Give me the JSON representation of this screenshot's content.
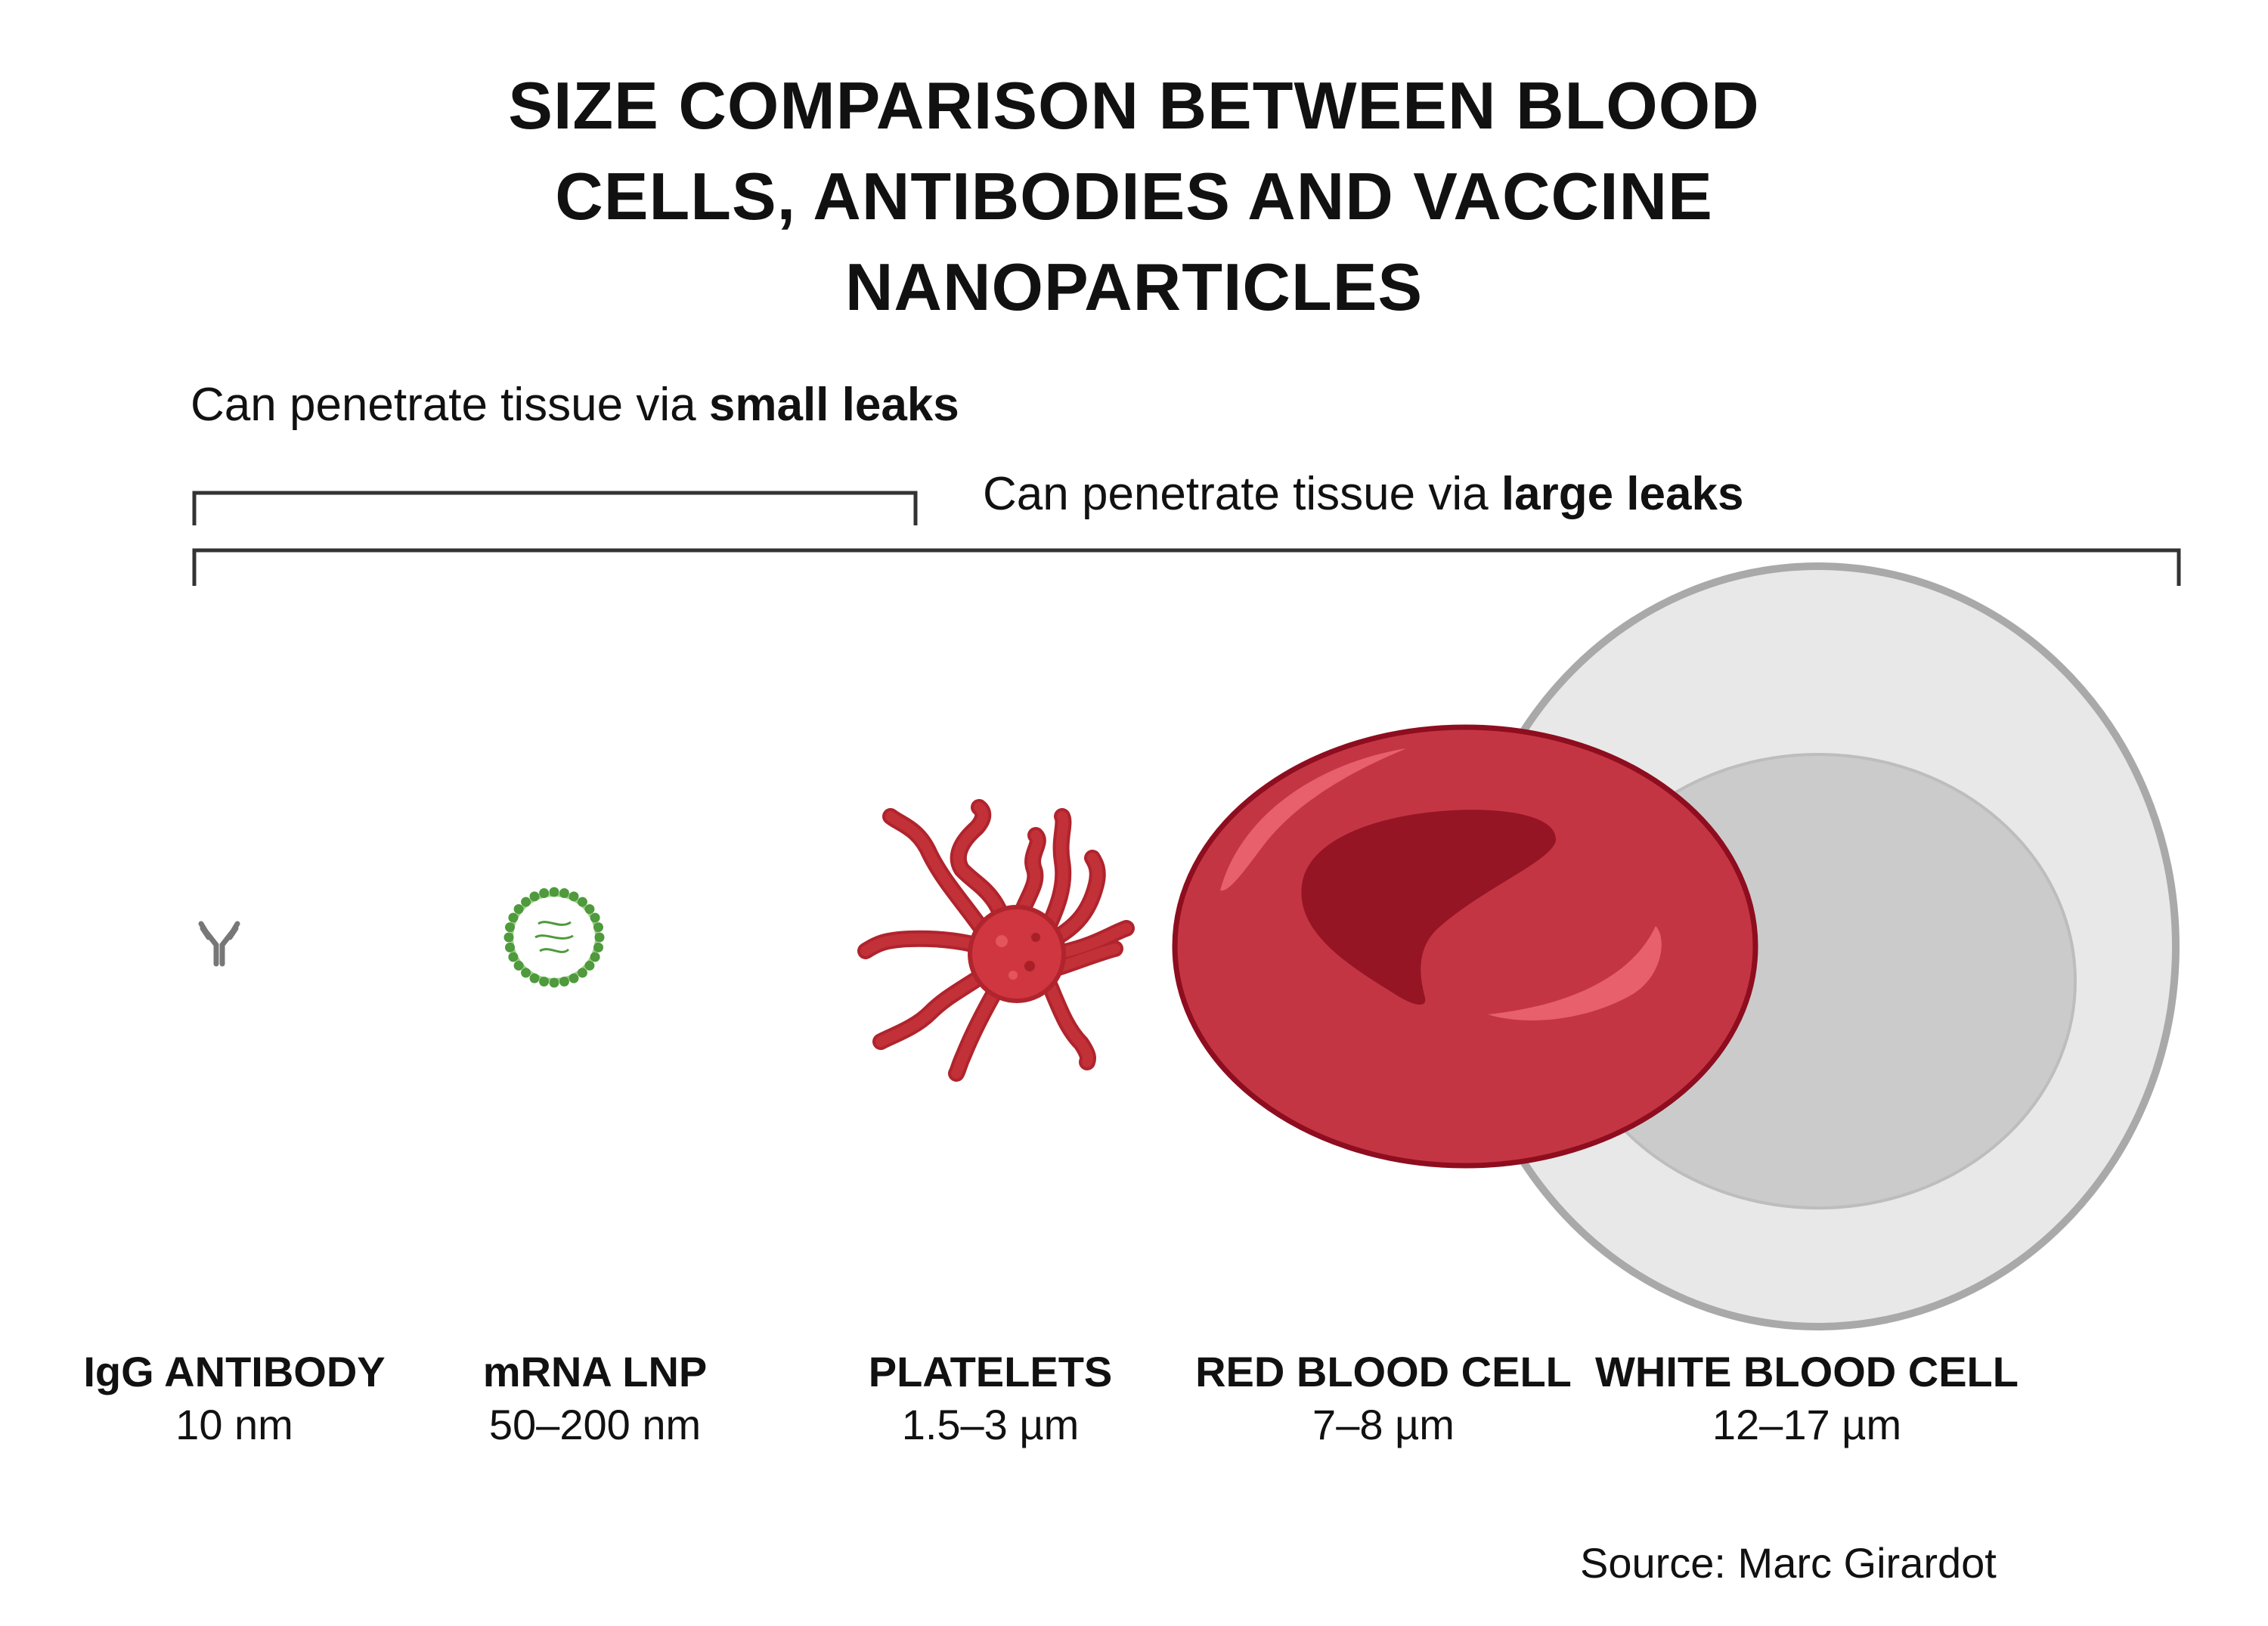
{
  "title": {
    "line1": "SIZE COMPARISON BETWEEN BLOOD",
    "line2": "CELLS, ANTIBODIES AND VACCINE",
    "line3": "NANOPARTICLES"
  },
  "brackets": {
    "small": {
      "prefix": "Can penetrate tissue via ",
      "emphasis": "small leaks"
    },
    "large": {
      "prefix": "Can penetrate tissue via ",
      "emphasis": "large leaks"
    }
  },
  "items": [
    {
      "name": "IgG ANTIBODY",
      "size": "10 nm",
      "icon": "antibody-icon"
    },
    {
      "name": "mRNA LNP",
      "size": "50–200 nm",
      "icon": "lipid-nanoparticle-icon"
    },
    {
      "name": "PLATELETS",
      "size": "1.5–3 µm",
      "icon": "platelet-icon"
    },
    {
      "name": "RED BLOOD CELL",
      "size": "7–8 µm",
      "icon": "red-blood-cell-icon"
    },
    {
      "name": "WHITE BLOOD CELL",
      "size": "12–17 µm",
      "icon": "white-blood-cell-icon"
    }
  ],
  "colors": {
    "rbc_fill": "#c43544",
    "rbc_stroke": "#8e0d1f",
    "rbc_center": "#951524",
    "rbc_highlight": "#e8606c",
    "wbc_outer": "#e8e8e8",
    "wbc_border": "#a9a9a9",
    "wbc_nucleus": "#cbcbcb",
    "platelet": "#d0363f",
    "lnp_green": "#4e9a3c",
    "antibody_gray": "#777777"
  },
  "source": "Source: Marc Girardot"
}
